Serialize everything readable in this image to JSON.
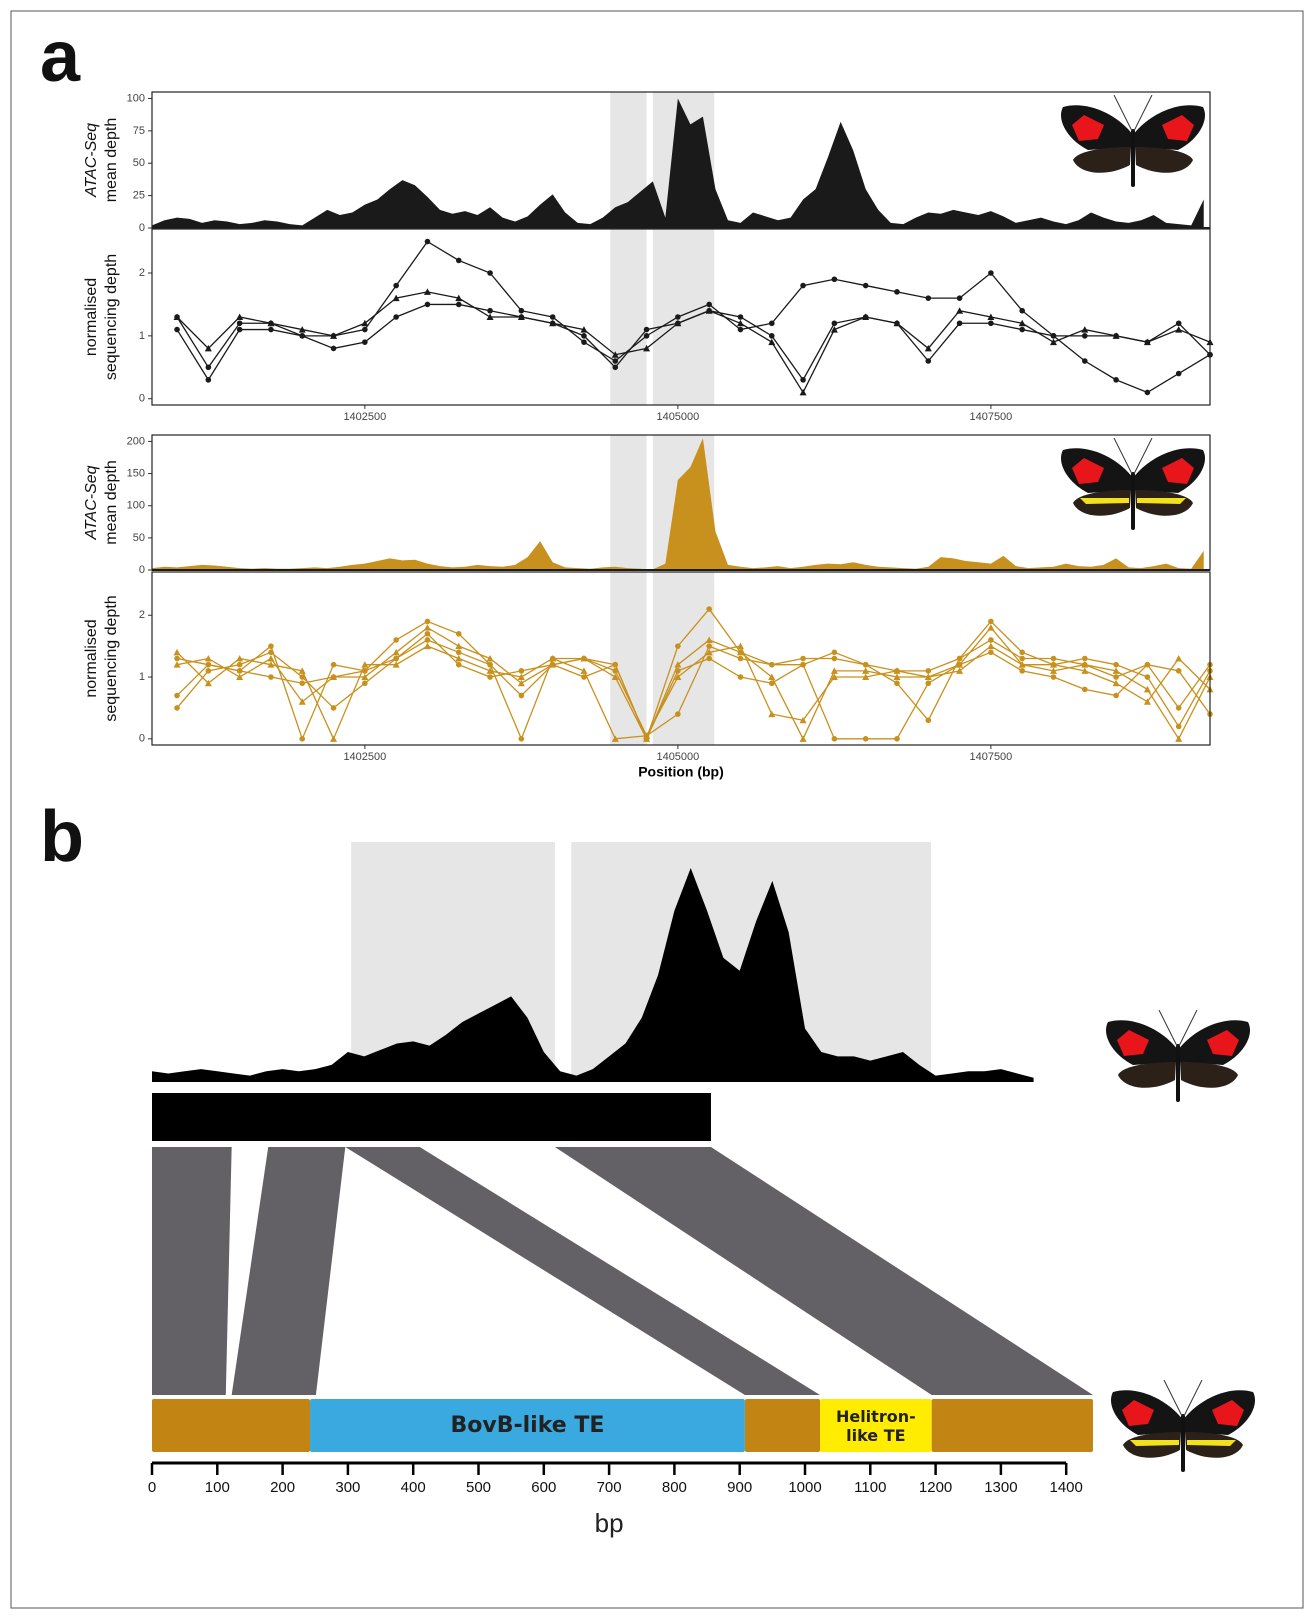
{
  "panel_labels": [
    "a",
    "b"
  ],
  "chart_data": [
    {
      "type": "area",
      "ylabel": [
        "ATAC-Seq",
        "mean depth"
      ],
      "color": "#1a1a1a",
      "xlim": [
        1400800,
        1409250
      ],
      "ylim": [
        0,
        105
      ],
      "yticks": [
        0,
        25,
        50,
        75,
        100
      ],
      "highlights": [
        [
          1404460,
          1404750
        ],
        [
          1404800,
          1405290
        ]
      ],
      "x": [
        1400800,
        1400900,
        1401000,
        1401100,
        1401200,
        1401300,
        1401400,
        1401500,
        1401600,
        1401700,
        1401800,
        1401900,
        1402000,
        1402100,
        1402200,
        1402300,
        1402400,
        1402500,
        1402600,
        1402700,
        1402800,
        1402900,
        1403000,
        1403100,
        1403200,
        1403300,
        1403400,
        1403500,
        1403600,
        1403700,
        1403800,
        1403900,
        1404000,
        1404100,
        1404200,
        1404300,
        1404400,
        1404500,
        1404600,
        1404700,
        1404800,
        1404900,
        1405000,
        1405100,
        1405200,
        1405300,
        1405400,
        1405500,
        1405600,
        1405700,
        1405800,
        1405900,
        1406000,
        1406100,
        1406200,
        1406300,
        1406400,
        1406500,
        1406600,
        1406700,
        1406800,
        1406900,
        1407000,
        1407100,
        1407200,
        1407300,
        1407400,
        1407500,
        1407600,
        1407700,
        1407800,
        1407900,
        1408000,
        1408100,
        1408200,
        1408300,
        1408400,
        1408500,
        1408600,
        1408700,
        1408800,
        1408900,
        1409000,
        1409100,
        1409200
      ],
      "values": [
        2,
        6,
        8,
        7,
        4,
        6,
        5,
        3,
        4,
        6,
        5,
        3,
        2,
        8,
        14,
        10,
        12,
        18,
        22,
        30,
        37,
        33,
        24,
        14,
        11,
        13,
        10,
        16,
        8,
        5,
        9,
        18,
        26,
        12,
        4,
        3,
        8,
        16,
        20,
        28,
        36,
        8,
        100,
        80,
        86,
        30,
        6,
        4,
        12,
        9,
        6,
        8,
        22,
        30,
        55,
        82,
        60,
        30,
        14,
        4,
        3,
        8,
        12,
        11,
        14,
        12,
        10,
        13,
        9,
        4,
        6,
        8,
        5,
        3,
        6,
        12,
        8,
        5,
        4,
        6,
        10,
        4,
        3,
        2,
        22
      ]
    },
    {
      "type": "line",
      "ylabel": [
        "normalised",
        "sequencing depth"
      ],
      "xlim": [
        1400800,
        1409250
      ],
      "ylim": [
        -0.1,
        2.7
      ],
      "yticks": [
        0,
        1,
        2
      ],
      "xticks": [
        1402500,
        1405000,
        1407500
      ],
      "highlights": [
        [
          1404460,
          1404750
        ],
        [
          1404800,
          1405290
        ]
      ],
      "x": [
        1401000,
        1401250,
        1401500,
        1401750,
        1402000,
        1402250,
        1402500,
        1402750,
        1403000,
        1403250,
        1403500,
        1403750,
        1404000,
        1404250,
        1404500,
        1404750,
        1405000,
        1405250,
        1405500,
        1405750,
        1406000,
        1406250,
        1406500,
        1406750,
        1407000,
        1407250,
        1407500,
        1407750,
        1408000,
        1408250,
        1408500,
        1408750,
        1409000,
        1409250
      ],
      "series": [
        {
          "color": "#1a1a1a",
          "marker": "circle",
          "values": [
            1.3,
            0.5,
            1.2,
            1.2,
            1.0,
            1.0,
            1.1,
            1.8,
            2.5,
            2.2,
            2.0,
            1.4,
            1.3,
            0.9,
            0.6,
            1.0,
            1.3,
            1.5,
            1.1,
            1.2,
            1.8,
            1.9,
            1.8,
            1.7,
            1.6,
            1.6,
            2.0,
            1.4,
            1.0,
            0.6,
            0.3,
            0.1,
            0.4,
            0.7
          ]
        },
        {
          "color": "#1a1a1a",
          "marker": "triangle",
          "values": [
            1.3,
            0.8,
            1.3,
            1.2,
            1.1,
            1.0,
            1.2,
            1.6,
            1.7,
            1.6,
            1.3,
            1.3,
            1.2,
            1.1,
            0.7,
            0.8,
            1.2,
            1.4,
            1.2,
            0.9,
            0.1,
            1.1,
            1.3,
            1.2,
            0.8,
            1.4,
            1.3,
            1.2,
            0.9,
            1.1,
            1.0,
            0.9,
            1.1,
            0.9
          ]
        },
        {
          "color": "#1a1a1a",
          "marker": "circle",
          "values": [
            1.1,
            0.3,
            1.1,
            1.1,
            1.0,
            0.8,
            0.9,
            1.3,
            1.5,
            1.5,
            1.4,
            1.3,
            1.2,
            1.0,
            0.5,
            1.1,
            1.2,
            1.4,
            1.3,
            1.0,
            0.3,
            1.2,
            1.3,
            1.2,
            0.6,
            1.2,
            1.2,
            1.1,
            1.0,
            1.0,
            1.0,
            0.9,
            1.2,
            0.7
          ]
        }
      ]
    },
    {
      "type": "area",
      "ylabel": [
        "ATAC-Seq",
        "mean depth"
      ],
      "color": "#c8901c",
      "xlim": [
        1400800,
        1409250
      ],
      "ylim": [
        0,
        210
      ],
      "yticks": [
        0,
        50,
        100,
        150,
        200
      ],
      "highlights": [
        [
          1404460,
          1404750
        ],
        [
          1404800,
          1405290
        ]
      ],
      "x": [
        1400800,
        1400900,
        1401000,
        1401100,
        1401200,
        1401300,
        1401400,
        1401500,
        1401600,
        1401700,
        1401800,
        1401900,
        1402000,
        1402100,
        1402200,
        1402300,
        1402400,
        1402500,
        1402600,
        1402700,
        1402800,
        1402900,
        1403000,
        1403100,
        1403200,
        1403300,
        1403400,
        1403500,
        1403600,
        1403700,
        1403800,
        1403900,
        1404000,
        1404100,
        1404200,
        1404300,
        1404400,
        1404500,
        1404600,
        1404700,
        1404800,
        1404900,
        1405000,
        1405100,
        1405200,
        1405300,
        1405400,
        1405500,
        1405600,
        1405700,
        1405800,
        1405900,
        1406000,
        1406100,
        1406200,
        1406300,
        1406400,
        1406500,
        1406600,
        1406700,
        1406800,
        1406900,
        1407000,
        1407100,
        1407200,
        1407300,
        1407400,
        1407500,
        1407600,
        1407700,
        1407800,
        1407900,
        1408000,
        1408100,
        1408200,
        1408300,
        1408400,
        1408500,
        1408600,
        1408700,
        1408800,
        1408900,
        1409000,
        1409100,
        1409200
      ],
      "values": [
        3,
        5,
        4,
        6,
        8,
        7,
        5,
        3,
        2,
        3,
        2,
        2,
        3,
        4,
        3,
        5,
        8,
        10,
        14,
        18,
        15,
        16,
        10,
        6,
        4,
        5,
        8,
        6,
        5,
        8,
        20,
        45,
        12,
        4,
        3,
        2,
        4,
        5,
        3,
        2,
        1,
        10,
        140,
        160,
        205,
        60,
        8,
        5,
        3,
        4,
        6,
        3,
        5,
        8,
        10,
        9,
        12,
        8,
        5,
        4,
        3,
        2,
        5,
        20,
        18,
        14,
        12,
        10,
        22,
        6,
        3,
        4,
        5,
        10,
        6,
        5,
        8,
        18,
        4,
        3,
        6,
        10,
        3,
        2,
        30
      ]
    },
    {
      "type": "line",
      "ylabel": [
        "normalised",
        "sequencing depth"
      ],
      "xlabel": "Position (bp)",
      "xlim": [
        1400800,
        1409250
      ],
      "ylim": [
        -0.1,
        2.7
      ],
      "yticks": [
        0,
        1,
        2
      ],
      "xticks": [
        1402500,
        1405000,
        1407500
      ],
      "highlights": [
        [
          1404460,
          1404750
        ],
        [
          1404800,
          1405290
        ]
      ],
      "x": [
        1401000,
        1401250,
        1401500,
        1401750,
        1402000,
        1402250,
        1402500,
        1402750,
        1403000,
        1403250,
        1403500,
        1403750,
        1404000,
        1404250,
        1404500,
        1404750,
        1405000,
        1405250,
        1405500,
        1405750,
        1406000,
        1406250,
        1406500,
        1406750,
        1407000,
        1407250,
        1407500,
        1407750,
        1408000,
        1408250,
        1408500,
        1408750,
        1409000,
        1409250
      ],
      "series": [
        {
          "color": "#c8901c",
          "marker": "circle",
          "values": [
            0.7,
            1.2,
            1.1,
            1.5,
            0,
            1.2,
            1.1,
            1.6,
            1.9,
            1.7,
            1.2,
            0,
            1.3,
            1.3,
            1.2,
            0,
            1.5,
            2.1,
            1.4,
            1.2,
            1.3,
            1.3,
            1.2,
            0.9,
            0.3,
            1.3,
            1.9,
            1.4,
            1.2,
            1.3,
            1.2,
            1.0,
            0.2,
            1.1
          ]
        },
        {
          "color": "#c8901c",
          "marker": "triangle",
          "values": [
            1.2,
            1.3,
            1.0,
            1.3,
            0.6,
            1.0,
            1.0,
            1.4,
            1.8,
            1.5,
            1.3,
            0.9,
            1.2,
            1.3,
            1.0,
            0,
            1.2,
            1.6,
            1.4,
            1.0,
            0,
            1.1,
            1.1,
            1.0,
            1.0,
            1.2,
            1.8,
            1.2,
            1.1,
            1.2,
            1.1,
            0.8,
            0,
            1.0
          ]
        },
        {
          "color": "#c8901c",
          "marker": "circle",
          "values": [
            0.5,
            1.1,
            1.2,
            1.4,
            1.0,
            0.5,
            0.9,
            1.3,
            1.6,
            1.4,
            1.2,
            0.7,
            1.2,
            1.3,
            1.1,
            0.05,
            0.4,
            1.5,
            1.3,
            1.2,
            1.2,
            1.4,
            1.2,
            1.1,
            1.1,
            1.3,
            1.6,
            1.3,
            1.3,
            1.2,
            1.0,
            1.2,
            0.5,
            1.2
          ]
        },
        {
          "color": "#c8901c",
          "marker": "triangle",
          "values": [
            1.4,
            0.9,
            1.3,
            1.2,
            1.1,
            0,
            1.2,
            1.2,
            1.5,
            1.3,
            1.1,
            1.0,
            1.3,
            1.1,
            0,
            0.05,
            1.0,
            1.4,
            1.5,
            0.4,
            0.3,
            1.0,
            1.0,
            1.1,
            1.0,
            1.1,
            1.5,
            1.2,
            1.2,
            1.1,
            0.9,
            0.6,
            1.3,
            0.8
          ]
        },
        {
          "color": "#c8901c",
          "marker": "circle",
          "values": [
            1.3,
            1.2,
            1.1,
            1.0,
            0.9,
            1.0,
            1.1,
            1.3,
            1.7,
            1.2,
            1.0,
            1.1,
            1.2,
            1.0,
            1.2,
            0,
            1.1,
            1.3,
            1.0,
            0.9,
            1.2,
            0,
            0,
            0,
            0.9,
            1.2,
            1.4,
            1.1,
            1.0,
            0.8,
            0.7,
            1.2,
            1.1,
            0.4
          ]
        }
      ]
    },
    {
      "type": "alignment",
      "xlabel": "bp",
      "xlim": [
        0,
        1450
      ],
      "xticks": [
        0,
        100,
        200,
        300,
        400,
        500,
        600,
        700,
        800,
        900,
        1000,
        1100,
        1200,
        1300,
        1400
      ],
      "track": {
        "color": "#000000",
        "x": [
          0,
          25,
          50,
          75,
          100,
          125,
          150,
          175,
          200,
          225,
          250,
          275,
          300,
          325,
          350,
          375,
          400,
          425,
          450,
          475,
          500,
          525,
          550,
          575,
          600,
          625,
          650,
          675,
          700,
          725,
          750,
          775,
          800,
          825,
          850,
          875,
          900,
          925,
          950,
          975,
          1000,
          1025,
          1050,
          1075,
          1100,
          1125,
          1150,
          1175,
          1200,
          1225,
          1250,
          1275,
          1300,
          1325,
          1350
        ],
        "values": [
          5,
          4,
          5,
          6,
          5,
          4,
          3,
          5,
          6,
          5,
          6,
          8,
          14,
          12,
          15,
          18,
          19,
          17,
          22,
          28,
          32,
          36,
          40,
          30,
          14,
          5,
          3,
          6,
          12,
          18,
          30,
          50,
          80,
          100,
          80,
          58,
          52,
          75,
          94,
          70,
          25,
          14,
          12,
          12,
          10,
          12,
          14,
          8,
          3,
          4,
          5,
          5,
          6,
          4,
          2
        ]
      },
      "highlights": [
        [
          305,
          617
        ],
        [
          642,
          1193
        ]
      ],
      "top_bar": [
        0,
        856
      ],
      "blocks": [
        {
          "top": [
            0,
            122
          ],
          "bottom": [
            0,
            113
          ]
        },
        {
          "top": [
            178,
            296
          ],
          "bottom": [
            122,
            251
          ]
        },
        {
          "top": [
            296,
            410
          ],
          "bottom": [
            908,
            1023
          ]
        },
        {
          "top": [
            617,
            856
          ],
          "bottom": [
            1194,
            1441
          ]
        }
      ],
      "block_color": "#636166",
      "segments": [
        {
          "start": 0,
          "end": 242,
          "color": "#c28413"
        },
        {
          "start": 242,
          "end": 908,
          "color": "#39a9df",
          "label": "BovB-like TE"
        },
        {
          "start": 908,
          "end": 1023,
          "color": "#c28413"
        },
        {
          "start": 1023,
          "end": 1194,
          "color": "#ffec00",
          "label": "Helitron-like TE"
        },
        {
          "start": 1194,
          "end": 1441,
          "color": "#c28413"
        }
      ]
    }
  ]
}
